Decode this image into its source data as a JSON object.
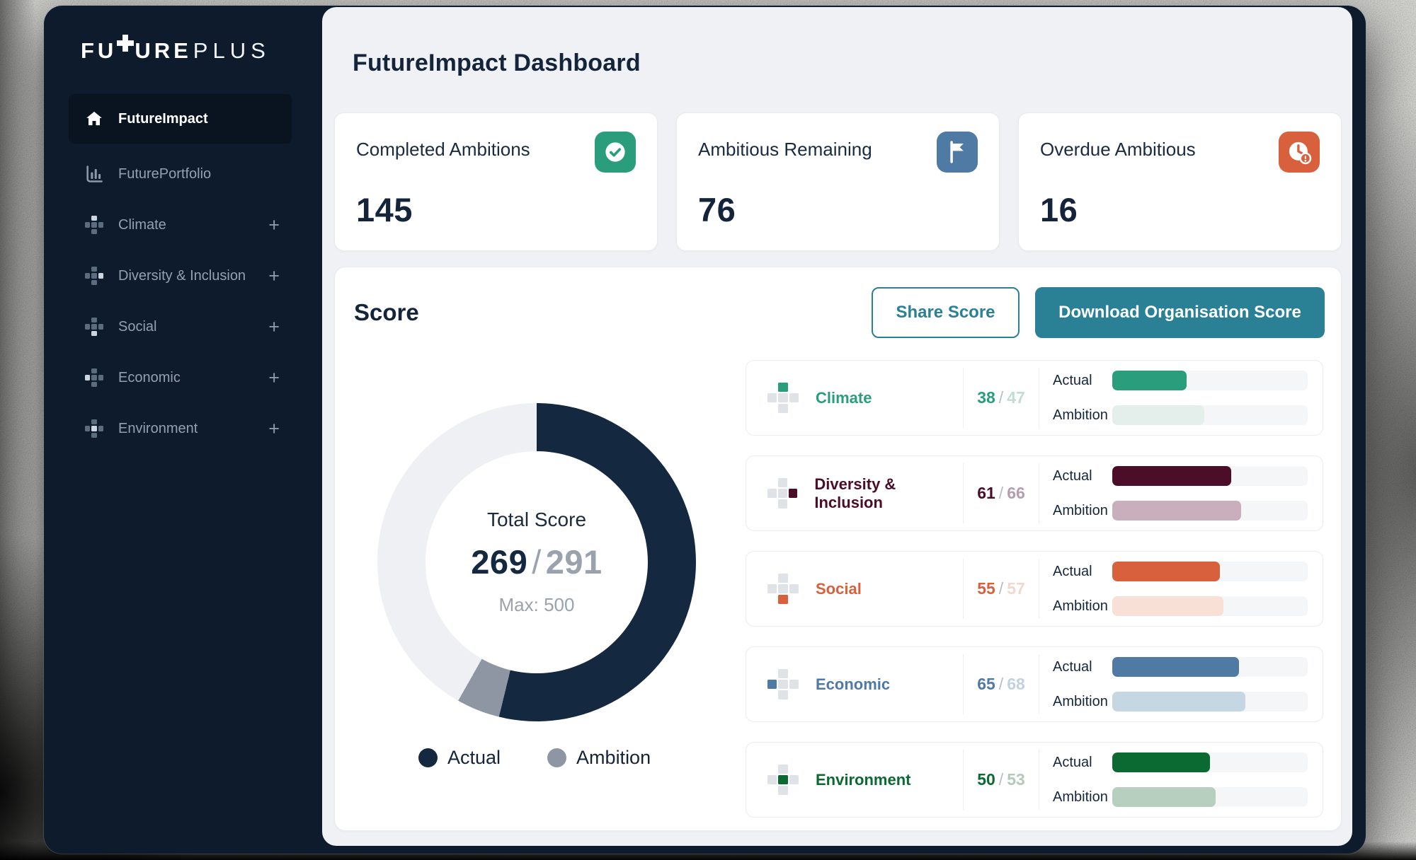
{
  "logo": {
    "text_bold_1": "FU",
    "plus_symbol": "+",
    "text_bold_2": "URE",
    "text_light": "PLUS"
  },
  "sidebar": {
    "items": [
      {
        "label": "FutureImpact",
        "icon": "home-icon",
        "active": true,
        "expandable": false
      },
      {
        "label": "FuturePortfolio",
        "icon": "bar-chart-icon",
        "active": false,
        "expandable": false
      },
      {
        "label": "Climate",
        "icon": "pixel-plus-icon",
        "active": false,
        "expandable": true,
        "expand_glyph": "+",
        "accent_pos": "top"
      },
      {
        "label": "Diversity & Inclusion",
        "icon": "pixel-plus-icon",
        "active": false,
        "expandable": true,
        "expand_glyph": "+",
        "accent_pos": "right"
      },
      {
        "label": "Social",
        "icon": "pixel-plus-icon",
        "active": false,
        "expandable": true,
        "expand_glyph": "+",
        "accent_pos": "bottom"
      },
      {
        "label": "Economic",
        "icon": "pixel-plus-icon",
        "active": false,
        "expandable": true,
        "expand_glyph": "+",
        "accent_pos": "left"
      },
      {
        "label": "Environment",
        "icon": "pixel-plus-icon",
        "active": false,
        "expandable": true,
        "expand_glyph": "+",
        "accent_pos": "center"
      }
    ]
  },
  "header": {
    "title": "FutureImpact Dashboard"
  },
  "stat_cards": [
    {
      "label": "Completed Ambitions",
      "value": "145",
      "icon": "check-circle-icon",
      "icon_bg": "#2a9d7d"
    },
    {
      "label": "Ambitious Remaining",
      "value": "76",
      "icon": "flag-icon",
      "icon_bg": "#4e7aa3"
    },
    {
      "label": "Overdue Ambitious",
      "value": "16",
      "icon": "clock-alert-icon",
      "icon_bg": "#d9603c"
    }
  ],
  "score_section": {
    "title": "Score",
    "share_button": "Share Score",
    "download_button": "Download Organisation Score"
  },
  "chart_data": {
    "type": "donut+bars",
    "separator": "/",
    "donut": {
      "center_label": "Total Score",
      "actual": 269,
      "ambition": 291,
      "max": 500,
      "max_label": "Max: 500",
      "colors": {
        "actual": "#14283f",
        "ambition": "#8e96a3",
        "remainder": "#eef0f3"
      },
      "legend": [
        {
          "label": "Actual",
          "color": "#14283f"
        },
        {
          "label": "Ambition",
          "color": "#8e96a3"
        }
      ]
    },
    "row_labels": {
      "actual": "Actual",
      "ambition": "Ambition"
    },
    "categories": [
      {
        "name": "Climate",
        "actual": 38,
        "ambition": 47,
        "color": "#2a9d7d",
        "ambition_color": "#e4efeb",
        "ambition_text_color": "#c2dcd4",
        "accent_pos": "top"
      },
      {
        "name": "Diversity & Inclusion",
        "actual": 61,
        "ambition": 66,
        "color": "#4b0d28",
        "ambition_color": "#c9aebc",
        "ambition_text_color": "#b3a0ab",
        "accent_pos": "right"
      },
      {
        "name": "Social",
        "actual": 55,
        "ambition": 57,
        "color": "#d9603c",
        "ambition_color": "#f8e0d7",
        "ambition_text_color": "#f3d7cc",
        "accent_pos": "bottom"
      },
      {
        "name": "Economic",
        "actual": 65,
        "ambition": 68,
        "color": "#4e7aa3",
        "ambition_color": "#c6d7e4",
        "ambition_text_color": "#c0d2e0",
        "accent_pos": "left"
      },
      {
        "name": "Environment",
        "actual": 50,
        "ambition": 53,
        "color": "#0b6a31",
        "ambition_color": "#b7cfbe",
        "ambition_text_color": "#b4c9ba",
        "accent_pos": "center"
      }
    ]
  }
}
